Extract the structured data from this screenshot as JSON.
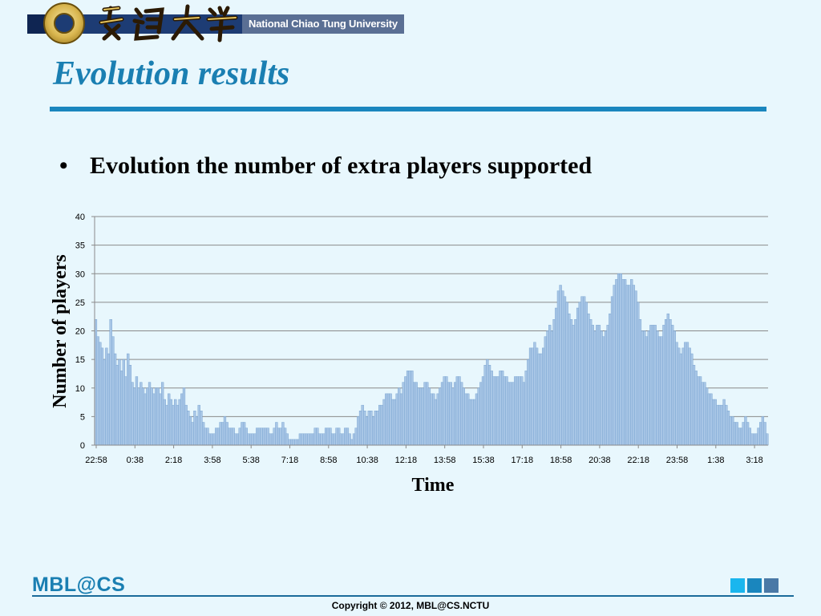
{
  "header": {
    "university_name": "National Chiao Tung University"
  },
  "slide": {
    "title": "Evolution results",
    "bullet_marker": "•",
    "bullet_text": "Evolution the number of extra players supported"
  },
  "colors": {
    "title": "#1a7fb2",
    "rule": "#1a86be",
    "bar": "#a8c6e6",
    "bar_edge": "#6f9ccc",
    "background": "#e8f7fd",
    "square1": "#1ab6ee",
    "square2": "#1a86be",
    "square3": "#4a79a6"
  },
  "chart_data": {
    "type": "bar",
    "xlabel": "Time",
    "ylabel": "Number of players",
    "ylim": [
      0,
      40
    ],
    "yticks": [
      0,
      5,
      10,
      15,
      20,
      25,
      30,
      35,
      40
    ],
    "grid": true,
    "xtick_labels": [
      "22:58",
      "0:38",
      "2:18",
      "3:58",
      "5:38",
      "7:18",
      "8:58",
      "10:38",
      "12:18",
      "13:58",
      "15:38",
      "17:18",
      "18:58",
      "20:38",
      "22:18",
      "23:58",
      "1:38",
      "3:18"
    ],
    "values": [
      22,
      19,
      18,
      17,
      15,
      17,
      16,
      22,
      19,
      16,
      14,
      15,
      13,
      15,
      12,
      16,
      14,
      11,
      10,
      12,
      10,
      11,
      10,
      9,
      10,
      11,
      10,
      9,
      10,
      10,
      9,
      11,
      8,
      7,
      9,
      8,
      7,
      8,
      7,
      8,
      9,
      10,
      7,
      6,
      5,
      4,
      6,
      5,
      7,
      6,
      4,
      3,
      3,
      2,
      2,
      2,
      3,
      3,
      4,
      4,
      5,
      4,
      3,
      3,
      3,
      2,
      2,
      3,
      4,
      4,
      3,
      2,
      2,
      2,
      2,
      3,
      3,
      3,
      3,
      3,
      3,
      2,
      2,
      3,
      4,
      3,
      3,
      4,
      3,
      2,
      1,
      1,
      1,
      1,
      1,
      2,
      2,
      2,
      2,
      2,
      2,
      2,
      3,
      3,
      2,
      2,
      2,
      3,
      3,
      3,
      2,
      2,
      3,
      3,
      2,
      2,
      3,
      3,
      2,
      1,
      2,
      3,
      5,
      6,
      7,
      6,
      5,
      6,
      6,
      5,
      6,
      6,
      7,
      7,
      8,
      9,
      9,
      9,
      8,
      8,
      9,
      10,
      9,
      11,
      12,
      13,
      13,
      13,
      11,
      11,
      10,
      10,
      10,
      11,
      11,
      10,
      9,
      9,
      8,
      9,
      10,
      11,
      12,
      12,
      11,
      11,
      10,
      11,
      12,
      12,
      11,
      10,
      9,
      9,
      8,
      8,
      8,
      9,
      10,
      11,
      12,
      14,
      15,
      14,
      13,
      12,
      12,
      12,
      13,
      13,
      12,
      12,
      11,
      11,
      11,
      12,
      12,
      12,
      12,
      11,
      13,
      15,
      17,
      17,
      18,
      17,
      16,
      16,
      17,
      19,
      20,
      21,
      20,
      22,
      24,
      27,
      28,
      27,
      26,
      25,
      23,
      22,
      21,
      22,
      24,
      25,
      26,
      26,
      25,
      23,
      22,
      21,
      20,
      21,
      21,
      20,
      19,
      20,
      21,
      23,
      26,
      28,
      29,
      30,
      30,
      29,
      29,
      28,
      28,
      29,
      28,
      27,
      25,
      22,
      20,
      20,
      19,
      20,
      21,
      21,
      21,
      20,
      19,
      19,
      21,
      22,
      23,
      22,
      21,
      20,
      18,
      17,
      16,
      17,
      18,
      18,
      17,
      16,
      14,
      13,
      12,
      12,
      11,
      11,
      10,
      9,
      9,
      8,
      8,
      7,
      7,
      7,
      8,
      7,
      6,
      5,
      5,
      4,
      4,
      3,
      3,
      4,
      5,
      4,
      3,
      2,
      2,
      2,
      3,
      4,
      5,
      4,
      2
    ]
  },
  "footer": {
    "logo": "MBL@CS",
    "copyright": "Copyright © 2012, MBL@CS.NCTU"
  }
}
